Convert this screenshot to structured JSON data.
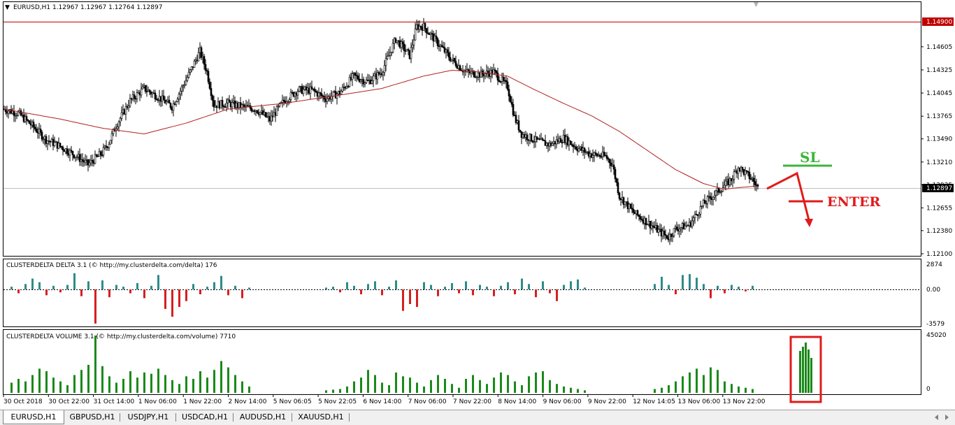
{
  "chart_title": "EURUSD,H1  1.12967 1.12967 1.12764 1.12897",
  "price_axis_labels": [
    "1.14605",
    "1.14325",
    "1.14045",
    "1.13765",
    "1.13490",
    "1.13210",
    "1.12935",
    "1.12655",
    "1.12380",
    "1.12100"
  ],
  "red_level_label": "1.14900",
  "current_price_label": "1.12897",
  "annotations": {
    "sl": "SL",
    "enter": "ENTER"
  },
  "delta_panel": {
    "title": "CLUSTERDELTA DELTA 3.1 (© http://my.clusterdelta.com/delta) 176",
    "labels": [
      "2874",
      "0.00",
      "-3579"
    ]
  },
  "volume_panel": {
    "title": "CLUSTERDELTA VOLUME 3.1 (© http://my.clusterdelta.com/volume) 7710",
    "labels": [
      "45020",
      "0"
    ]
  },
  "time_labels": [
    "30 Oct 2018",
    "30 Oct 22:00",
    "31 Oct 14:00",
    "1 Nov 06:00",
    "1 Nov 22:00",
    "2 Nov 14:00",
    "5 Nov 06:05",
    "5 Nov 22:05",
    "6 Nov 14:00",
    "7 Nov 06:00",
    "7 Nov 22:00",
    "8 Nov 14:00",
    "9 Nov 06:00",
    "9 Nov 22:00",
    "12 Nov 14:05",
    "13 Nov 06:00",
    "13 Nov 22:00"
  ],
  "tabs": [
    {
      "label": "EURUSD,H1",
      "active": true
    },
    {
      "label": "GBPUSD,H1",
      "active": false
    },
    {
      "label": "USDJPY,H1",
      "active": false
    },
    {
      "label": "USDCAD,H1",
      "active": false
    },
    {
      "label": "AUDUSD,H1",
      "active": false
    },
    {
      "label": "XAUUSD,H1",
      "active": false
    }
  ],
  "colors": {
    "bull_candle": "#ffffff",
    "bear_candle": "#000000",
    "moving_average": "#b22222",
    "red_level": "#c00000",
    "delta_positive": "#2e8b8b",
    "delta_negative": "#d42020",
    "volume": "#1a8a1a",
    "sl_line": "#3cb43c",
    "enter_arrow": "#e01b1b",
    "volume_highlight": "#e01b1b"
  },
  "chart_data": [
    {
      "type": "candlestick",
      "symbol": "EURUSD",
      "timeframe": "H1",
      "ohlc": {
        "open": 1.12967,
        "high": 1.12967,
        "low": 1.12764,
        "close": 1.12897
      },
      "ylim": [
        1.121,
        1.149
      ],
      "price_path": [
        [
          0,
          1.1385
        ],
        [
          10,
          1.138
        ],
        [
          20,
          1.1365
        ],
        [
          30,
          1.1348
        ],
        [
          40,
          1.134
        ],
        [
          50,
          1.133
        ],
        [
          60,
          1.1318
        ],
        [
          70,
          1.1332
        ],
        [
          75,
          1.1345
        ],
        [
          80,
          1.1365
        ],
        [
          90,
          1.1395
        ],
        [
          100,
          1.141
        ],
        [
          110,
          1.14
        ],
        [
          120,
          1.1388
        ],
        [
          130,
          1.142
        ],
        [
          140,
          1.1455
        ],
        [
          145,
          1.143
        ],
        [
          150,
          1.139
        ],
        [
          160,
          1.1392
        ],
        [
          170,
          1.1388
        ],
        [
          180,
          1.1385
        ],
        [
          190,
          1.1372
        ],
        [
          200,
          1.1395
        ],
        [
          210,
          1.1408
        ],
        [
          220,
          1.1408
        ],
        [
          230,
          1.1398
        ],
        [
          240,
          1.1405
        ],
        [
          250,
          1.1425
        ],
        [
          260,
          1.1418
        ],
        [
          270,
          1.143
        ],
        [
          280,
          1.147
        ],
        [
          290,
          1.145
        ],
        [
          295,
          1.1485
        ],
        [
          300,
          1.1485
        ],
        [
          310,
          1.1465
        ],
        [
          320,
          1.1445
        ],
        [
          330,
          1.143
        ],
        [
          340,
          1.1427
        ],
        [
          350,
          1.143
        ],
        [
          360,
          1.1412
        ],
        [
          365,
          1.1375
        ],
        [
          370,
          1.1355
        ],
        [
          380,
          1.1347
        ],
        [
          390,
          1.1342
        ],
        [
          400,
          1.135
        ],
        [
          410,
          1.1338
        ],
        [
          420,
          1.133
        ],
        [
          430,
          1.1328
        ],
        [
          435,
          1.1318
        ],
        [
          440,
          1.128
        ],
        [
          450,
          1.126
        ],
        [
          460,
          1.1248
        ],
        [
          470,
          1.1235
        ],
        [
          475,
          1.123
        ],
        [
          480,
          1.124
        ],
        [
          490,
          1.1245
        ],
        [
          500,
          1.127
        ],
        [
          510,
          1.1285
        ],
        [
          520,
          1.13
        ],
        [
          525,
          1.1315
        ],
        [
          535,
          1.13
        ],
        [
          539,
          1.12897
        ]
      ],
      "moving_average": [
        [
          0,
          1.1385
        ],
        [
          40,
          1.1373
        ],
        [
          70,
          1.1362
        ],
        [
          100,
          1.1355
        ],
        [
          130,
          1.1368
        ],
        [
          160,
          1.1385
        ],
        [
          200,
          1.1392
        ],
        [
          240,
          1.1402
        ],
        [
          270,
          1.141
        ],
        [
          300,
          1.1425
        ],
        [
          320,
          1.1432
        ],
        [
          340,
          1.143
        ],
        [
          360,
          1.1425
        ],
        [
          380,
          1.1408
        ],
        [
          400,
          1.1392
        ],
        [
          420,
          1.1377
        ],
        [
          440,
          1.1358
        ],
        [
          460,
          1.1335
        ],
        [
          480,
          1.1312
        ],
        [
          500,
          1.1295
        ],
        [
          515,
          1.1288
        ],
        [
          525,
          1.129
        ],
        [
          539,
          1.1292
        ]
      ],
      "levels": [
        1.149
      ]
    },
    {
      "type": "bar",
      "name": "CLUSTERDELTA DELTA 3.1",
      "ylim": [
        -3579,
        2874
      ],
      "x": [
        5,
        10,
        15,
        20,
        25,
        30,
        35,
        40,
        45,
        50,
        55,
        60,
        65,
        70,
        75,
        80,
        85,
        90,
        95,
        100,
        105,
        110,
        115,
        120,
        125,
        130,
        135,
        140,
        145,
        150,
        155,
        160,
        165,
        170,
        175,
        230,
        235,
        240,
        245,
        250,
        255,
        260,
        265,
        270,
        275,
        280,
        285,
        290,
        295,
        300,
        305,
        310,
        315,
        320,
        325,
        330,
        335,
        340,
        345,
        350,
        355,
        360,
        365,
        370,
        375,
        380,
        385,
        390,
        395,
        400,
        405,
        410,
        415,
        465,
        470,
        475,
        480,
        485,
        490,
        495,
        500,
        505,
        510,
        515,
        520,
        525,
        530,
        535
      ],
      "values": [
        300,
        -400,
        600,
        1200,
        800,
        -600,
        400,
        -300,
        500,
        1800,
        -700,
        900,
        -3500,
        1000,
        -800,
        500,
        300,
        -400,
        700,
        -900,
        400,
        1600,
        -2000,
        -2800,
        -1800,
        -1200,
        600,
        -500,
        300,
        800,
        1500,
        -600,
        400,
        -900,
        200,
        200,
        300,
        -300,
        800,
        400,
        -500,
        600,
        900,
        -600,
        300,
        1000,
        -2200,
        -1500,
        -1800,
        800,
        500,
        -700,
        300,
        700,
        -400,
        900,
        -600,
        500,
        300,
        -700,
        400,
        800,
        -500,
        1200,
        600,
        -800,
        900,
        -400,
        -1200,
        500,
        900,
        1100,
        200,
        600,
        1400,
        500,
        -500,
        1600,
        1700,
        1300,
        600,
        -900,
        400,
        -400,
        500,
        300,
        -200,
        400
      ]
    },
    {
      "type": "bar",
      "name": "CLUSTERDELTA VOLUME 3.1",
      "ylim": [
        0,
        45020
      ],
      "x": [
        5,
        10,
        15,
        20,
        25,
        30,
        35,
        40,
        45,
        50,
        55,
        60,
        65,
        70,
        75,
        80,
        85,
        90,
        95,
        100,
        105,
        110,
        115,
        120,
        125,
        130,
        135,
        140,
        145,
        150,
        155,
        160,
        165,
        170,
        175,
        230,
        235,
        240,
        245,
        250,
        255,
        260,
        265,
        270,
        275,
        280,
        285,
        290,
        295,
        300,
        305,
        310,
        315,
        320,
        325,
        330,
        335,
        340,
        345,
        350,
        355,
        360,
        365,
        370,
        375,
        380,
        385,
        390,
        395,
        400,
        405,
        410,
        415,
        465,
        470,
        475,
        480,
        485,
        490,
        495,
        500,
        505,
        510,
        515,
        520,
        525,
        530,
        535
      ],
      "values": [
        8000,
        11000,
        9000,
        14000,
        19000,
        17000,
        12000,
        9000,
        6000,
        14000,
        18000,
        22000,
        45000,
        21000,
        13000,
        8000,
        11000,
        17000,
        12000,
        16000,
        15000,
        19000,
        14000,
        10000,
        7000,
        13000,
        11000,
        17000,
        12000,
        18000,
        25000,
        20000,
        14000,
        9000,
        5000,
        2000,
        2500,
        3000,
        5000,
        9000,
        12000,
        18000,
        14000,
        8000,
        6000,
        16000,
        13000,
        12000,
        8000,
        5000,
        10000,
        14000,
        11000,
        7000,
        4000,
        11000,
        14000,
        10000,
        7000,
        12000,
        16000,
        14000,
        9000,
        6000,
        13000,
        16000,
        17000,
        10000,
        7000,
        5000,
        4000,
        3000,
        2000,
        3000,
        4000,
        6000,
        9000,
        13000,
        16000,
        19000,
        14000,
        20000,
        18000,
        9000,
        7000,
        5000,
        4000,
        3000
      ]
    }
  ]
}
